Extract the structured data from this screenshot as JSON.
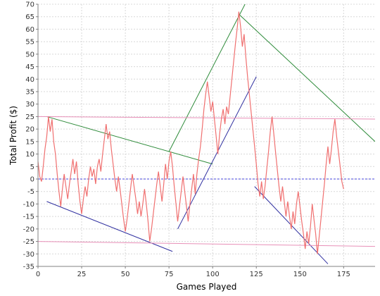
{
  "chart_data": {
    "type": "line",
    "xlabel": "Games Played",
    "ylabel": "Total Profit ($)",
    "xlim": [
      0,
      193
    ],
    "ylim": [
      -35,
      70
    ],
    "x_ticks": [
      0,
      25,
      50,
      75,
      100,
      125,
      150,
      175
    ],
    "y_ticks": [
      -35,
      -30,
      -25,
      -20,
      -15,
      -10,
      -5,
      0,
      5,
      10,
      15,
      20,
      25,
      30,
      35,
      40,
      45,
      50,
      55,
      60,
      65,
      70
    ],
    "grid": true,
    "zero_line": {
      "y": 0,
      "color": "#4444dd",
      "style": "dashed"
    },
    "series": [
      {
        "color": "#f07070",
        "points": [
          [
            0,
            7
          ],
          [
            1,
            1
          ],
          [
            2,
            -1
          ],
          [
            3,
            5
          ],
          [
            4,
            12
          ],
          [
            5,
            17
          ],
          [
            6,
            25
          ],
          [
            7,
            19
          ],
          [
            8,
            24
          ],
          [
            9,
            15
          ],
          [
            10,
            10
          ],
          [
            11,
            2
          ],
          [
            12,
            -5
          ],
          [
            13,
            -11
          ],
          [
            14,
            -4
          ],
          [
            15,
            2
          ],
          [
            16,
            -3
          ],
          [
            17,
            -8
          ],
          [
            18,
            -2
          ],
          [
            19,
            3
          ],
          [
            20,
            8
          ],
          [
            21,
            2
          ],
          [
            22,
            7
          ],
          [
            23,
            -2
          ],
          [
            24,
            -9
          ],
          [
            25,
            -14
          ],
          [
            26,
            -8
          ],
          [
            27,
            -3
          ],
          [
            28,
            -7
          ],
          [
            29,
            0
          ],
          [
            30,
            5
          ],
          [
            31,
            1
          ],
          [
            32,
            4
          ],
          [
            33,
            -2
          ],
          [
            34,
            5
          ],
          [
            35,
            8
          ],
          [
            36,
            3
          ],
          [
            37,
            10
          ],
          [
            38,
            16
          ],
          [
            39,
            22
          ],
          [
            40,
            16
          ],
          [
            41,
            19
          ],
          [
            42,
            12
          ],
          [
            43,
            6
          ],
          [
            44,
            0
          ],
          [
            45,
            -5
          ],
          [
            46,
            1
          ],
          [
            47,
            -4
          ],
          [
            48,
            -10
          ],
          [
            49,
            -16
          ],
          [
            50,
            -21
          ],
          [
            51,
            -16
          ],
          [
            52,
            -10
          ],
          [
            53,
            -4
          ],
          [
            54,
            2
          ],
          [
            55,
            -3
          ],
          [
            56,
            -8
          ],
          [
            57,
            -14
          ],
          [
            58,
            -9
          ],
          [
            59,
            -15
          ],
          [
            60,
            -10
          ],
          [
            61,
            -4
          ],
          [
            62,
            -10
          ],
          [
            63,
            -17
          ],
          [
            64,
            -25
          ],
          [
            65,
            -20
          ],
          [
            66,
            -14
          ],
          [
            67,
            -8
          ],
          [
            68,
            -2
          ],
          [
            69,
            3
          ],
          [
            70,
            -3
          ],
          [
            71,
            -9
          ],
          [
            72,
            -2
          ],
          [
            73,
            6
          ],
          [
            74,
            0
          ],
          [
            75,
            7
          ],
          [
            76,
            11
          ],
          [
            77,
            5
          ],
          [
            78,
            -3
          ],
          [
            79,
            -10
          ],
          [
            80,
            -17
          ],
          [
            81,
            -11
          ],
          [
            82,
            -5
          ],
          [
            83,
            1
          ],
          [
            84,
            -5
          ],
          [
            85,
            -11
          ],
          [
            86,
            -17
          ],
          [
            87,
            -10
          ],
          [
            88,
            -4
          ],
          [
            89,
            2
          ],
          [
            90,
            -6
          ],
          [
            91,
            2
          ],
          [
            92,
            8
          ],
          [
            93,
            13
          ],
          [
            94,
            20
          ],
          [
            95,
            28
          ],
          [
            96,
            34
          ],
          [
            97,
            39
          ],
          [
            98,
            33
          ],
          [
            99,
            27
          ],
          [
            100,
            31
          ],
          [
            101,
            24
          ],
          [
            102,
            17
          ],
          [
            103,
            10
          ],
          [
            104,
            18
          ],
          [
            105,
            24
          ],
          [
            106,
            28
          ],
          [
            107,
            22
          ],
          [
            108,
            29
          ],
          [
            109,
            26
          ],
          [
            110,
            33
          ],
          [
            111,
            40
          ],
          [
            112,
            47
          ],
          [
            113,
            54
          ],
          [
            114,
            60
          ],
          [
            115,
            67
          ],
          [
            116,
            61
          ],
          [
            117,
            53
          ],
          [
            118,
            58
          ],
          [
            119,
            49
          ],
          [
            120,
            41
          ],
          [
            121,
            34
          ],
          [
            122,
            27
          ],
          [
            123,
            20
          ],
          [
            124,
            13
          ],
          [
            125,
            6
          ],
          [
            126,
            -2
          ],
          [
            127,
            -7
          ],
          [
            128,
            -1
          ],
          [
            129,
            -8
          ],
          [
            130,
            -3
          ],
          [
            131,
            4
          ],
          [
            132,
            11
          ],
          [
            133,
            19
          ],
          [
            134,
            25
          ],
          [
            135,
            18
          ],
          [
            136,
            11
          ],
          [
            137,
            4
          ],
          [
            138,
            -3
          ],
          [
            139,
            -9
          ],
          [
            140,
            -3
          ],
          [
            141,
            -9
          ],
          [
            142,
            -15
          ],
          [
            143,
            -9
          ],
          [
            144,
            -15
          ],
          [
            145,
            -20
          ],
          [
            146,
            -13
          ],
          [
            147,
            -18
          ],
          [
            148,
            -10
          ],
          [
            149,
            -5
          ],
          [
            150,
            -11
          ],
          [
            151,
            -17
          ],
          [
            152,
            -22
          ],
          [
            153,
            -28
          ],
          [
            154,
            -21
          ],
          [
            155,
            -26
          ],
          [
            156,
            -19
          ],
          [
            157,
            -10
          ],
          [
            158,
            -16
          ],
          [
            159,
            -22
          ],
          [
            160,
            -30
          ],
          [
            161,
            -23
          ],
          [
            162,
            -16
          ],
          [
            163,
            -9
          ],
          [
            164,
            -2
          ],
          [
            165,
            6
          ],
          [
            166,
            13
          ],
          [
            167,
            6
          ],
          [
            168,
            12
          ],
          [
            169,
            19
          ],
          [
            170,
            24
          ],
          [
            171,
            17
          ],
          [
            172,
            11
          ],
          [
            173,
            5
          ],
          [
            174,
            -1
          ],
          [
            175,
            -4
          ]
        ]
      }
    ],
    "trend_lines": [
      {
        "color": "#2e8b3a",
        "points": [
          [
            5,
            25
          ],
          [
            100,
            6
          ]
        ]
      },
      {
        "color": "#2e8b3a",
        "points": [
          [
            75,
            11
          ],
          [
            120,
            72
          ]
        ]
      },
      {
        "color": "#2e8b3a",
        "points": [
          [
            115,
            66
          ],
          [
            193,
            15
          ]
        ]
      },
      {
        "color": "#3030a0",
        "points": [
          [
            5,
            -9
          ],
          [
            77,
            -29
          ]
        ]
      },
      {
        "color": "#3030a0",
        "points": [
          [
            80,
            -20
          ],
          [
            125,
            41
          ]
        ]
      },
      {
        "color": "#3030a0",
        "points": [
          [
            124,
            -3
          ],
          [
            166,
            -34
          ]
        ]
      },
      {
        "color": "#e890b8",
        "points": [
          [
            0,
            25
          ],
          [
            193,
            24
          ]
        ]
      },
      {
        "color": "#e890b8",
        "points": [
          [
            0,
            -25
          ],
          [
            193,
            -27
          ]
        ]
      }
    ]
  }
}
